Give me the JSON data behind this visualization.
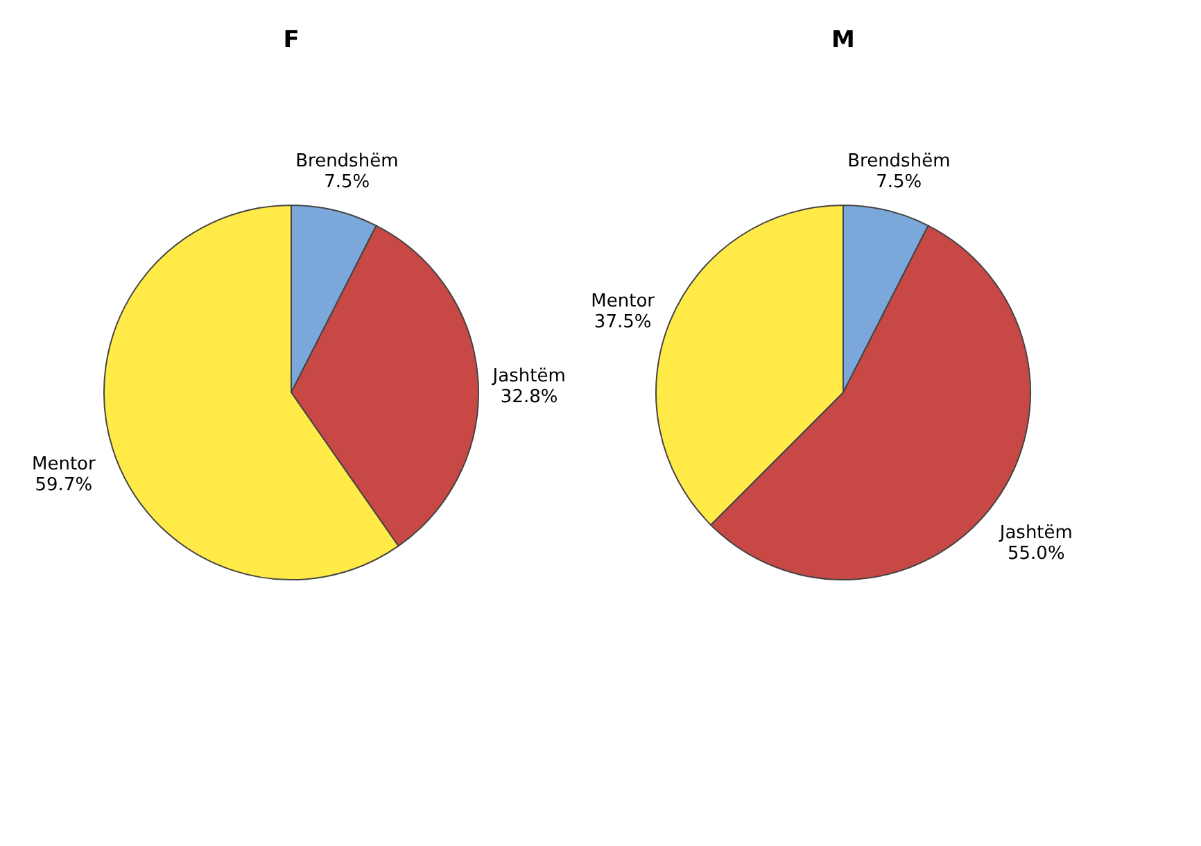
{
  "chart_data": [
    {
      "type": "pie",
      "title": "F",
      "categories": [
        "Brendshëm",
        "Jashtëm",
        "Mentor"
      ],
      "values": [
        7.5,
        32.8,
        59.7
      ],
      "value_labels": [
        "7.5%",
        "32.8%",
        "59.7%"
      ],
      "colors": [
        "#7ba7db",
        "#c84845",
        "#ffea47"
      ]
    },
    {
      "type": "pie",
      "title": "M",
      "categories": [
        "Brendshëm",
        "Jashtëm",
        "Mentor"
      ],
      "values": [
        7.5,
        55.0,
        37.5
      ],
      "value_labels": [
        "7.5%",
        "55.0%",
        "37.5%"
      ],
      "colors": [
        "#7ba7db",
        "#c84845",
        "#ffea47"
      ]
    }
  ]
}
